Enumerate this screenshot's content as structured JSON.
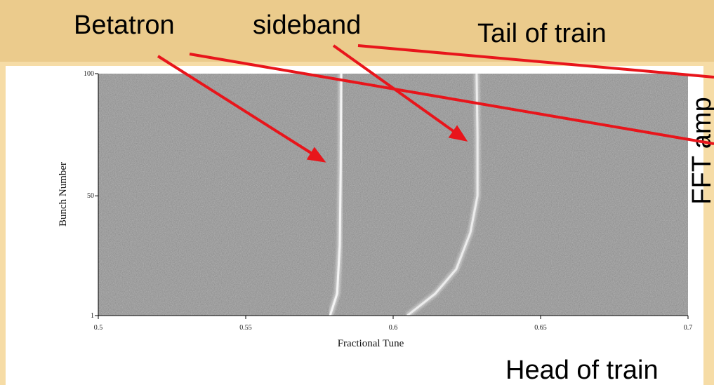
{
  "chart_data": {
    "type": "line",
    "x_label": "Fractional Tune",
    "y_label": "Bunch Number",
    "xlim": [
      0.5,
      0.7
    ],
    "xticks": [
      0.5,
      0.55,
      0.6,
      0.65,
      0.7
    ],
    "ylim": [
      1,
      100
    ],
    "yticks": [
      1,
      50,
      100
    ],
    "series": [
      {
        "color": "#f4f4f4",
        "x": [
          0.5786,
          0.581,
          0.5819,
          0.5822,
          0.5824
        ],
        "values": [
          1,
          10,
          30,
          60,
          100
        ]
      },
      {
        "color": "#ececec",
        "x": [
          0.6048,
          0.6143,
          0.6214,
          0.6262,
          0.6286,
          0.6286,
          0.6283
        ],
        "values": [
          1,
          10,
          20,
          35,
          50,
          75,
          100
        ]
      }
    ],
    "annotations": [
      "Betatron",
      "sideband",
      "Tail of train",
      "FFT amp",
      "Head of train"
    ]
  }
}
